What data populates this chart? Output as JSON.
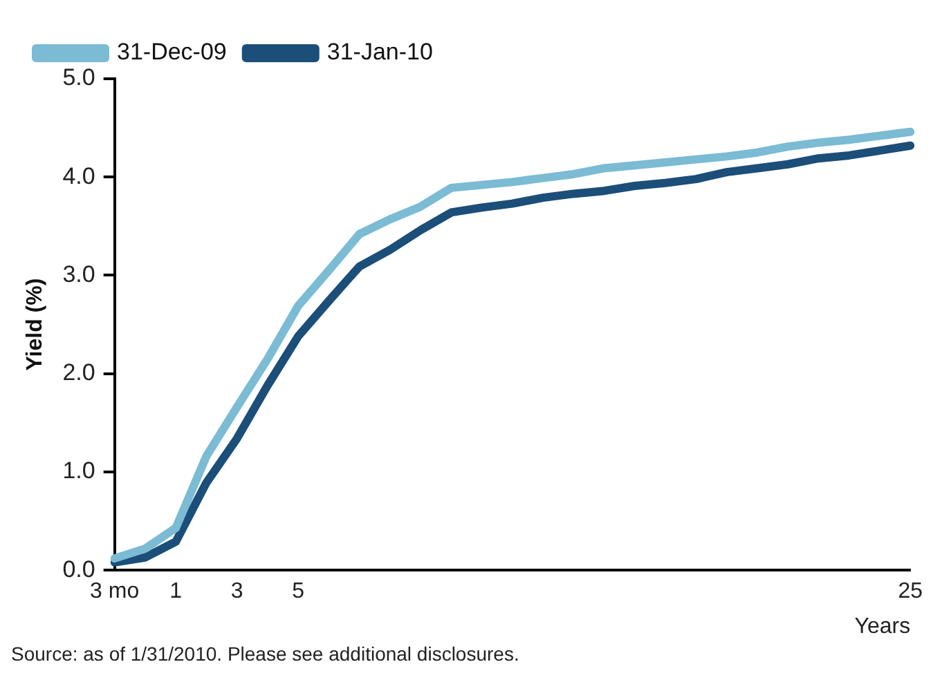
{
  "chart_data": {
    "type": "line",
    "ylabel": "Yield (%)",
    "xlabel": "Years",
    "categories": [
      "3 mo",
      null,
      "1",
      null,
      "3",
      null,
      "5",
      null,
      null,
      null,
      null,
      null,
      null,
      null,
      null,
      null,
      null,
      null,
      null,
      null,
      null,
      null,
      null,
      null,
      null,
      null,
      "25"
    ],
    "ylim": [
      0,
      5
    ],
    "yticks": [
      {
        "value": 0,
        "label": "0.0"
      },
      {
        "value": 1,
        "label": "1.0"
      },
      {
        "value": 2,
        "label": "2.0"
      },
      {
        "value": 3,
        "label": "3.0"
      },
      {
        "value": 4,
        "label": "4.0"
      },
      {
        "value": 5,
        "label": "5.0"
      }
    ],
    "grid": false,
    "legend": "top left",
    "marker": "none",
    "line_style": "solid",
    "series": [
      {
        "name": "31-Dec-09",
        "color": "#7bbbd4",
        "values": [
          0.12,
          0.22,
          0.43,
          1.16,
          1.66,
          2.15,
          2.69,
          3.05,
          3.42,
          3.57,
          3.7,
          3.89,
          3.92,
          3.95,
          3.99,
          4.03,
          4.09,
          4.12,
          4.15,
          4.18,
          4.21,
          4.25,
          4.31,
          4.35,
          4.38,
          4.42,
          4.46
        ]
      },
      {
        "name": "31-Jan-10",
        "color": "#1b4e78",
        "values": [
          0.08,
          0.13,
          0.29,
          0.89,
          1.34,
          1.88,
          2.38,
          2.74,
          3.09,
          3.26,
          3.46,
          3.64,
          3.69,
          3.73,
          3.79,
          3.83,
          3.86,
          3.91,
          3.94,
          3.98,
          4.05,
          4.09,
          4.13,
          4.19,
          4.22,
          4.27,
          4.32
        ]
      }
    ],
    "annotations": [
      "Source: as of 1/31/2010. Please see additional disclosures."
    ]
  }
}
